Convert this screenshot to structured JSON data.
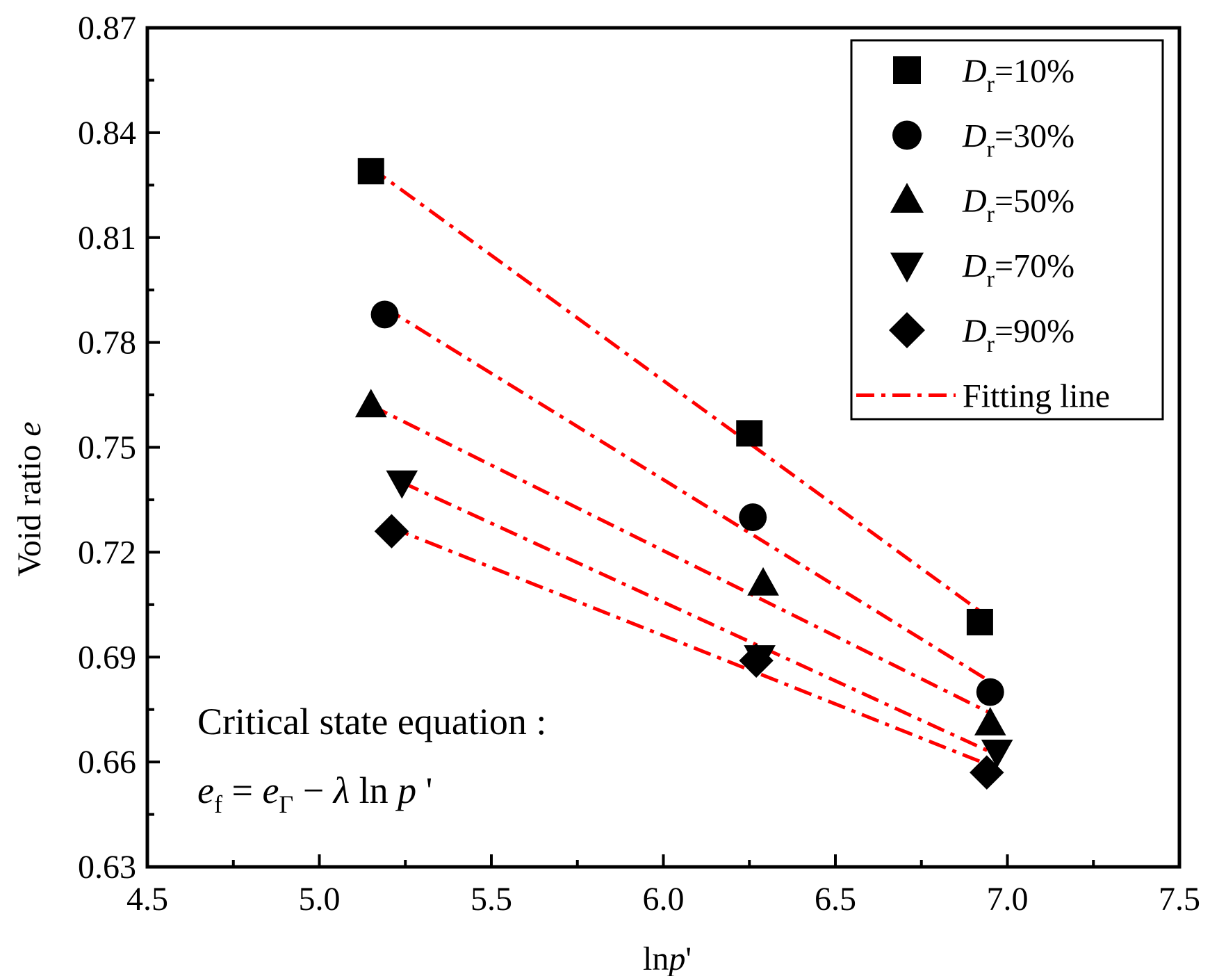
{
  "chart_data": {
    "type": "scatter",
    "title": "",
    "xlabel": {
      "main": "ln",
      "italic": "p",
      "suffix": "'"
    },
    "ylabel": {
      "main": "Void ratio ",
      "italic": "e"
    },
    "xlim": [
      4.5,
      7.5
    ],
    "ylim": [
      0.63,
      0.87
    ],
    "xticks": [
      "4.5",
      "5.0",
      "5.5",
      "6.0",
      "6.5",
      "7.0",
      "7.5"
    ],
    "yticks": [
      "0.63",
      "0.66",
      "0.69",
      "0.72",
      "0.75",
      "0.78",
      "0.81",
      "0.84",
      "0.87"
    ],
    "grid": false,
    "legend_position": "top-right",
    "series": [
      {
        "name": "Dr=10%",
        "label_main": "D",
        "label_sub": "r",
        "label_rest": "=10%",
        "marker": "square",
        "x": [
          5.15,
          6.25,
          6.92
        ],
        "y": [
          0.829,
          0.754,
          0.7
        ],
        "fit": {
          "x": [
            5.15,
            6.95
          ],
          "y": [
            0.83,
            0.701
          ]
        }
      },
      {
        "name": "Dr=30%",
        "label_main": "D",
        "label_sub": "r",
        "label_rest": "=30%",
        "marker": "circle",
        "x": [
          5.19,
          6.26,
          6.95
        ],
        "y": [
          0.788,
          0.73,
          0.68
        ],
        "fit": {
          "x": [
            5.19,
            6.95
          ],
          "y": [
            0.79,
            0.683
          ]
        }
      },
      {
        "name": "Dr=50%",
        "label_main": "D",
        "label_sub": "r",
        "label_rest": "=50%",
        "marker": "triangle-up",
        "x": [
          5.15,
          6.29,
          6.95
        ],
        "y": [
          0.762,
          0.711,
          0.671
        ],
        "fit": {
          "x": [
            5.15,
            6.95
          ],
          "y": [
            0.762,
            0.674
          ]
        }
      },
      {
        "name": "Dr=70%",
        "label_main": "D",
        "label_sub": "r",
        "label_rest": "=70%",
        "marker": "triangle-down",
        "x": [
          5.24,
          6.28,
          6.97
        ],
        "y": [
          0.74,
          0.69,
          0.663
        ],
        "fit": {
          "x": [
            5.24,
            6.97
          ],
          "y": [
            0.74,
            0.662
          ]
        }
      },
      {
        "name": "Dr=90%",
        "label_main": "D",
        "label_sub": "r",
        "label_rest": "=90%",
        "marker": "diamond",
        "x": [
          5.21,
          6.27,
          6.94
        ],
        "y": [
          0.726,
          0.689,
          0.657
        ],
        "fit": {
          "x": [
            5.21,
            6.95
          ],
          "y": [
            0.727,
            0.659
          ]
        }
      }
    ],
    "fit_legend": "Fitting line",
    "colors": {
      "marker": "#000000",
      "fit_line": "#ff0000",
      "axes": "#000000"
    },
    "annotation": {
      "line1": "Critical state equation :",
      "equation": {
        "lhs": "e",
        "lhs_sub": "f",
        "eq": " = ",
        "rhs1": "e",
        "rhs1_sub": "Γ",
        "minus": " − ",
        "lambda": "λ",
        "ln": " ln ",
        "p": "p",
        "prime": " '"
      }
    }
  }
}
